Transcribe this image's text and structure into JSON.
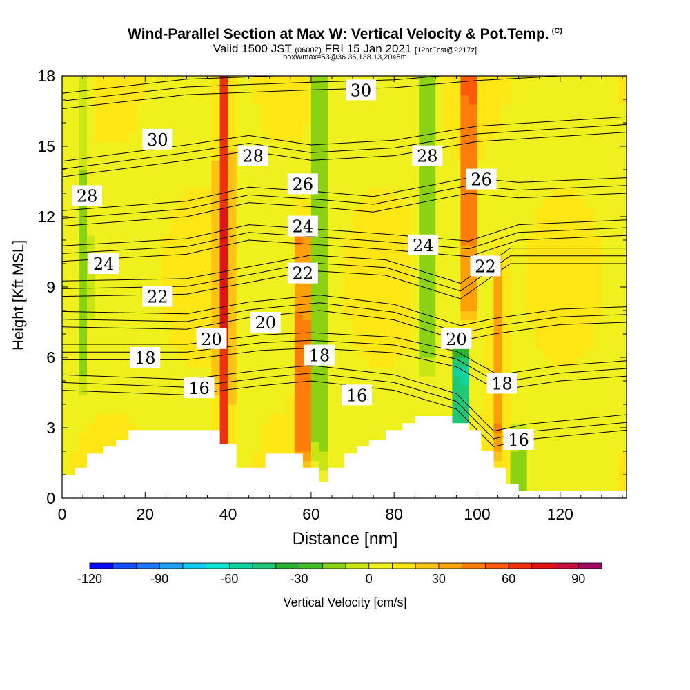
{
  "title": {
    "main": "Wind-Parallel Section at Max W: Vertical Velocity & Pot.Temp.",
    "copyright": "(C)",
    "line2_a": "Valid 1500 JST ",
    "line2_small1": "(0600Z)",
    "line2_b": " FRI 15 Jan 2021 ",
    "line2_small2": "[12hrFcst@2217z]",
    "line3": "boxWmax=53@36.36,138.13,2045m"
  },
  "chart_data": {
    "type": "heatmap",
    "xlabel": "Distance [nm]",
    "ylabel": "Height [Kft MSL]",
    "xlim": [
      0,
      136
    ],
    "ylim": [
      0,
      18
    ],
    "x_ticks": [
      0,
      20,
      40,
      60,
      80,
      100,
      120
    ],
    "y_ticks": [
      0,
      3,
      6,
      9,
      12,
      15,
      18
    ],
    "colorbar": {
      "label": "Vertical Velocity [cm/s]",
      "range": [
        -120,
        100
      ],
      "step": 10,
      "tick_values": [
        -120,
        -90,
        -60,
        -30,
        0,
        30,
        60,
        90
      ],
      "colors": [
        "#0a0aff",
        "#1550ff",
        "#1e78ff",
        "#22a0ff",
        "#14c8f0",
        "#0ae6d2",
        "#10d2a0",
        "#1ec878",
        "#28b432",
        "#46be28",
        "#8cd214",
        "#c8e614",
        "#f0f01e",
        "#ffe614",
        "#ffc314",
        "#ffa00a",
        "#ff7d0a",
        "#ff5a0a",
        "#f0320a",
        "#e11414",
        "#c8103c",
        "#a00a64",
        "#780a82"
      ]
    },
    "terrain": [
      [
        0,
        1.0
      ],
      [
        3,
        1.0
      ],
      [
        3,
        1.3
      ],
      [
        6,
        1.3
      ],
      [
        6,
        1.9
      ],
      [
        10,
        1.9
      ],
      [
        10,
        2.2
      ],
      [
        13,
        2.2
      ],
      [
        13,
        2.5
      ],
      [
        16,
        2.5
      ],
      [
        16,
        2.9
      ],
      [
        38,
        2.9
      ],
      [
        38,
        2.3
      ],
      [
        42,
        2.3
      ],
      [
        42,
        1.3
      ],
      [
        49,
        1.3
      ],
      [
        49,
        1.9
      ],
      [
        58,
        1.9
      ],
      [
        58,
        1.3
      ],
      [
        62,
        1.3
      ],
      [
        62,
        0.7
      ],
      [
        64,
        0.7
      ],
      [
        64,
        1.3
      ],
      [
        68,
        1.3
      ],
      [
        68,
        1.9
      ],
      [
        71,
        1.9
      ],
      [
        71,
        2.2
      ],
      [
        74,
        2.2
      ],
      [
        74,
        2.5
      ],
      [
        78,
        2.5
      ],
      [
        78,
        2.9
      ],
      [
        82,
        2.9
      ],
      [
        82,
        3.2
      ],
      [
        85,
        3.2
      ],
      [
        85,
        3.5
      ],
      [
        94,
        3.5
      ],
      [
        94,
        3.2
      ],
      [
        98,
        3.2
      ],
      [
        98,
        2.9
      ],
      [
        101,
        2.9
      ],
      [
        101,
        2.0
      ],
      [
        104,
        2.0
      ],
      [
        104,
        1.3
      ],
      [
        107,
        1.3
      ],
      [
        107,
        0.6
      ],
      [
        110,
        0.6
      ],
      [
        110,
        0.3
      ],
      [
        136,
        0.3
      ]
    ],
    "velocity_features": [
      {
        "x": 39,
        "z0": 2.5,
        "z1": 18,
        "peak": 60
      },
      {
        "x": 58,
        "z0": 2.5,
        "z1": 11,
        "peak": 55
      },
      {
        "x": 98,
        "z0": 8.5,
        "z1": 18,
        "peak": 55
      },
      {
        "x": 105,
        "z0": 3.0,
        "z1": 9.5,
        "peak": 30
      },
      {
        "x": 62,
        "z0": 2.5,
        "z1": 18,
        "peak": -35
      },
      {
        "x": 88,
        "z0": 6.5,
        "z1": 18,
        "peak": -35
      },
      {
        "x": 96,
        "z0": 1.5,
        "z1": 5.5,
        "peak": -85
      },
      {
        "x": 5,
        "z0": 5.5,
        "z1": 18,
        "peak": -18
      },
      {
        "x": 110,
        "z0": 0.3,
        "z1": 2.0,
        "peak": -28
      }
    ],
    "contours": [
      {
        "value": 30,
        "label": "30",
        "points": [
          [
            0,
            16.6
          ],
          [
            30,
            17.2
          ],
          [
            60,
            17.4
          ],
          [
            80,
            17.5
          ],
          [
            100,
            17.8
          ],
          [
            120,
            18.0
          ],
          [
            136,
            18.2
          ]
        ]
      },
      {
        "value": 28,
        "label": "28",
        "points": [
          [
            0,
            13.7
          ],
          [
            30,
            14.4
          ],
          [
            45,
            14.8
          ],
          [
            60,
            14.4
          ],
          [
            80,
            14.6
          ],
          [
            100,
            15.2
          ],
          [
            136,
            15.6
          ]
        ]
      },
      {
        "value": 26,
        "label": "26",
        "points": [
          [
            0,
            11.6
          ],
          [
            30,
            12.0
          ],
          [
            45,
            12.6
          ],
          [
            62,
            12.4
          ],
          [
            75,
            12.2
          ],
          [
            98,
            13.0
          ],
          [
            110,
            12.8
          ],
          [
            136,
            13.0
          ]
        ]
      },
      {
        "value": 24,
        "label": "24",
        "points": [
          [
            0,
            10.1
          ],
          [
            30,
            10.4
          ],
          [
            45,
            11.0
          ],
          [
            62,
            10.8
          ],
          [
            78,
            10.6
          ],
          [
            98,
            10.3
          ],
          [
            110,
            11.0
          ],
          [
            136,
            11.2
          ]
        ]
      },
      {
        "value": 22,
        "label": "22",
        "points": [
          [
            0,
            8.6
          ],
          [
            30,
            8.7
          ],
          [
            45,
            9.2
          ],
          [
            60,
            9.7
          ],
          [
            78,
            9.5
          ],
          [
            96,
            8.5
          ],
          [
            108,
            10.0
          ],
          [
            136,
            10.0
          ]
        ]
      },
      {
        "value": 20,
        "label": "20",
        "points": [
          [
            0,
            7.3
          ],
          [
            30,
            7.2
          ],
          [
            45,
            7.7
          ],
          [
            62,
            8.0
          ],
          [
            80,
            7.6
          ],
          [
            96,
            6.7
          ],
          [
            104,
            7.0
          ],
          [
            120,
            7.4
          ],
          [
            136,
            7.5
          ]
        ]
      },
      {
        "value": 18,
        "label": "18",
        "points": [
          [
            0,
            5.9
          ],
          [
            30,
            5.9
          ],
          [
            48,
            6.3
          ],
          [
            60,
            6.4
          ],
          [
            80,
            6.2
          ],
          [
            95,
            5.6
          ],
          [
            105,
            4.6
          ],
          [
            120,
            5.0
          ],
          [
            136,
            5.2
          ]
        ]
      },
      {
        "value": 16,
        "label": "16",
        "points": [
          [
            0,
            4.6
          ],
          [
            30,
            4.4
          ],
          [
            48,
            4.8
          ],
          [
            60,
            5.0
          ],
          [
            80,
            4.6
          ],
          [
            95,
            3.8
          ],
          [
            104,
            2.2
          ],
          [
            112,
            2.5
          ],
          [
            136,
            2.9
          ]
        ]
      }
    ],
    "contour_labels": [
      {
        "text": "30",
        "x": 72,
        "y": 17.4
      },
      {
        "text": "30",
        "x": 23,
        "y": 15.3
      },
      {
        "text": "28",
        "x": 6,
        "y": 12.9
      },
      {
        "text": "28",
        "x": 46,
        "y": 14.6
      },
      {
        "text": "28",
        "x": 88,
        "y": 14.6
      },
      {
        "text": "26",
        "x": 58,
        "y": 13.4
      },
      {
        "text": "26",
        "x": 101,
        "y": 13.6
      },
      {
        "text": "24",
        "x": 10,
        "y": 10.0
      },
      {
        "text": "24",
        "x": 58,
        "y": 11.6
      },
      {
        "text": "24",
        "x": 87,
        "y": 10.8
      },
      {
        "text": "22",
        "x": 23,
        "y": 8.6
      },
      {
        "text": "22",
        "x": 58,
        "y": 9.6
      },
      {
        "text": "22",
        "x": 102,
        "y": 9.9
      },
      {
        "text": "20",
        "x": 36,
        "y": 6.8
      },
      {
        "text": "20",
        "x": 49,
        "y": 7.5
      },
      {
        "text": "20",
        "x": 95,
        "y": 6.8
      },
      {
        "text": "18",
        "x": 20,
        "y": 6.0
      },
      {
        "text": "18",
        "x": 62,
        "y": 6.1
      },
      {
        "text": "18",
        "x": 106,
        "y": 4.9
      },
      {
        "text": "16",
        "x": 33,
        "y": 4.7
      },
      {
        "text": "16",
        "x": 71,
        "y": 4.4
      },
      {
        "text": "16",
        "x": 110,
        "y": 2.5
      }
    ]
  }
}
